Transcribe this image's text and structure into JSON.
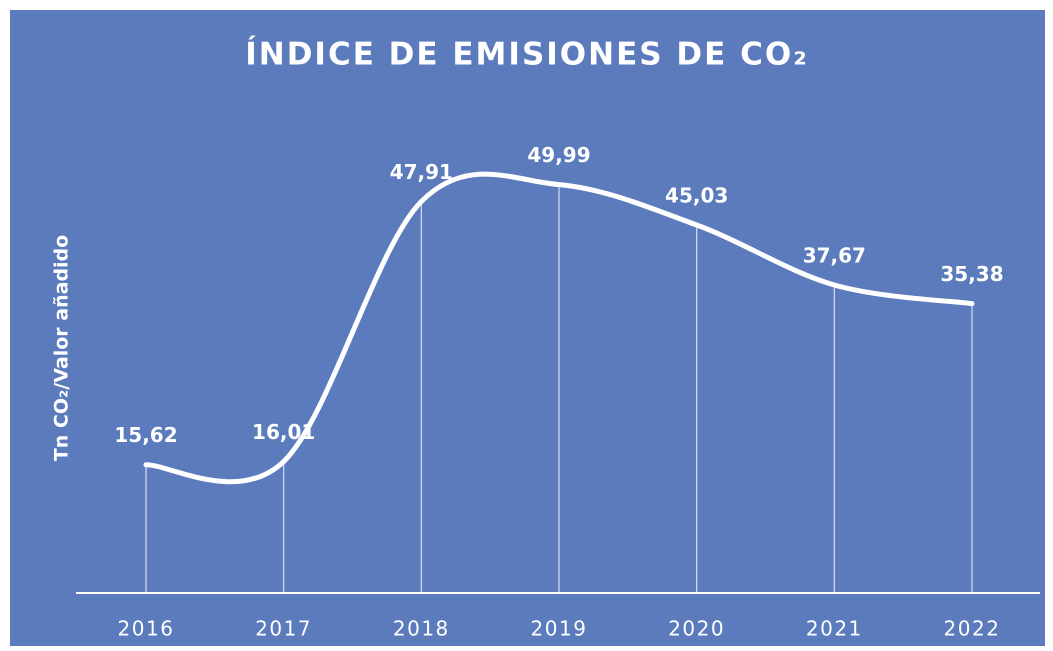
{
  "chart_data": {
    "type": "line",
    "title": "ÍNDICE DE EMISIONES DE CO₂",
    "y_label": "Tn CO₂/Valor añadido",
    "categories": [
      "2016",
      "2017",
      "2018",
      "2019",
      "2020",
      "2021",
      "2022"
    ],
    "values": [
      15.62,
      16.01,
      47.91,
      49.99,
      45.03,
      37.67,
      35.38
    ],
    "value_labels": [
      "15,62",
      "16,01",
      "47,91",
      "49,99",
      "45,03",
      "37,67",
      "35,38"
    ],
    "color": "#ffffff",
    "background": "#5b7bbd",
    "ylim": [
      0,
      60
    ],
    "smooth": true,
    "drop_lines": true
  }
}
